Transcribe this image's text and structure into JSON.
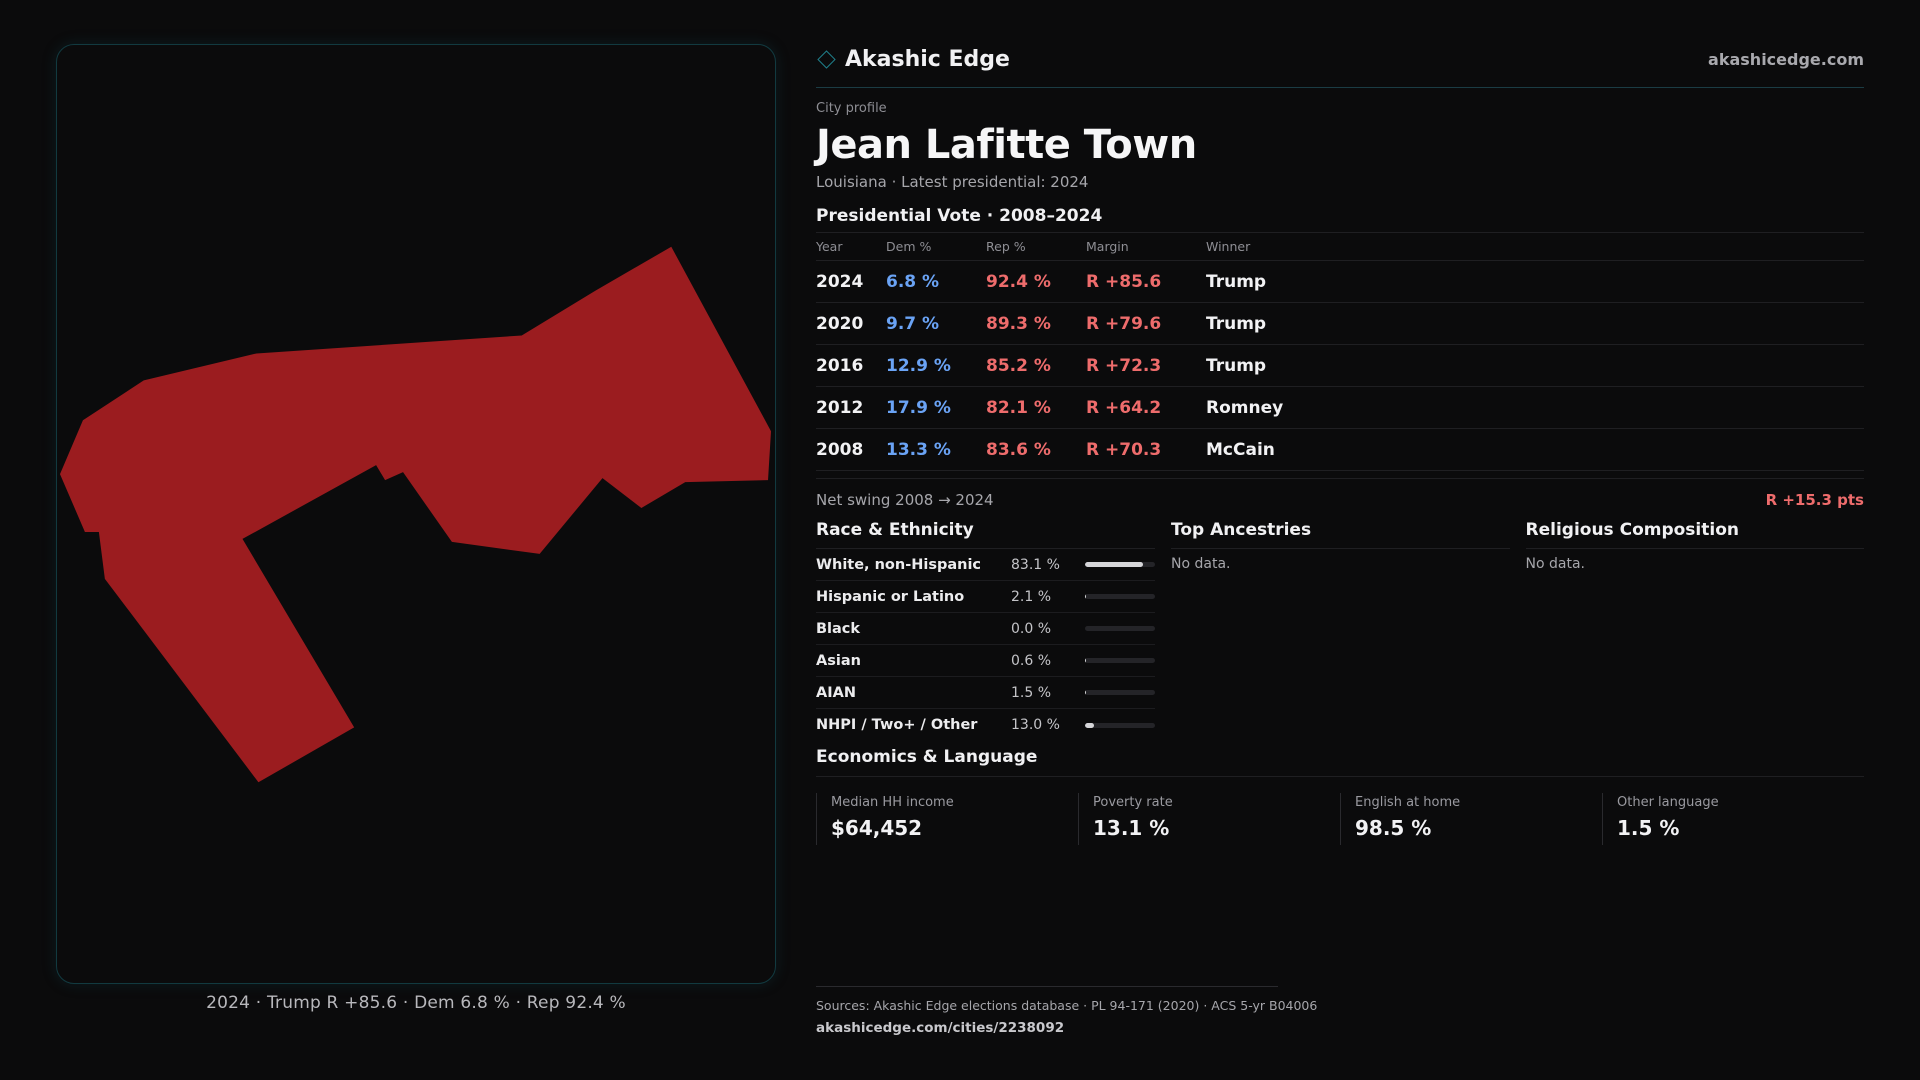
{
  "brand": {
    "name": "Akashic Edge",
    "url": "akashicedge.com",
    "accent": "#1f7f8a"
  },
  "profile": {
    "eyebrow": "City profile",
    "city": "Jean Lafitte Town",
    "subtitle": "Louisiana · Latest presidential: 2024"
  },
  "map": {
    "caption": "2024 · Trump R +85.6 · Dem 6.8 % · Rep 92.4 %",
    "fill_color": "#9b1c1f"
  },
  "vote": {
    "title": "Presidential Vote · 2008–2024",
    "headers": [
      "Year",
      "Dem %",
      "Rep %",
      "Margin",
      "Winner"
    ],
    "rows": [
      {
        "year": "2024",
        "dem": "6.8 %",
        "rep": "92.4 %",
        "margin": "R +85.6",
        "winner": "Trump"
      },
      {
        "year": "2020",
        "dem": "9.7 %",
        "rep": "89.3 %",
        "margin": "R +79.6",
        "winner": "Trump"
      },
      {
        "year": "2016",
        "dem": "12.9 %",
        "rep": "85.2 %",
        "margin": "R +72.3",
        "winner": "Trump"
      },
      {
        "year": "2012",
        "dem": "17.9 %",
        "rep": "82.1 %",
        "margin": "R +64.2",
        "winner": "Romney"
      },
      {
        "year": "2008",
        "dem": "13.3 %",
        "rep": "83.6 %",
        "margin": "R +70.3",
        "winner": "McCain"
      }
    ],
    "swing_label": "Net swing 2008 → 2024",
    "swing_value": "R +15.3 pts",
    "dem_color": "#6aa3f5",
    "rep_color": "#ee6c6c"
  },
  "race": {
    "title": "Race & Ethnicity",
    "rows": [
      {
        "label": "White, non-Hispanic",
        "value": "83.1 %",
        "share": 0.831
      },
      {
        "label": "Hispanic or Latino",
        "value": "2.1 %",
        "share": 0.021
      },
      {
        "label": "Black",
        "value": "0.0 %",
        "share": 0.0
      },
      {
        "label": "Asian",
        "value": "0.6 %",
        "share": 0.006
      },
      {
        "label": "AIAN",
        "value": "1.5 %",
        "share": 0.015
      },
      {
        "label": "NHPI / Two+ / Other",
        "value": "13.0 %",
        "share": 0.13
      }
    ]
  },
  "ancestries": {
    "title": "Top Ancestries",
    "empty": "No data."
  },
  "religion": {
    "title": "Religious Composition",
    "empty": "No data."
  },
  "economics": {
    "title": "Economics & Language",
    "stats": [
      {
        "label": "Median HH income",
        "value": "$64,452"
      },
      {
        "label": "Poverty rate",
        "value": "13.1 %"
      },
      {
        "label": "English at home",
        "value": "98.5 %"
      },
      {
        "label": "Other language",
        "value": "1.5 %"
      }
    ]
  },
  "sources": {
    "line": "Sources: Akashic Edge elections database · PL 94-171 (2020) · ACS 5-yr B04006",
    "url": "akashicedge.com/cities/2238092"
  }
}
